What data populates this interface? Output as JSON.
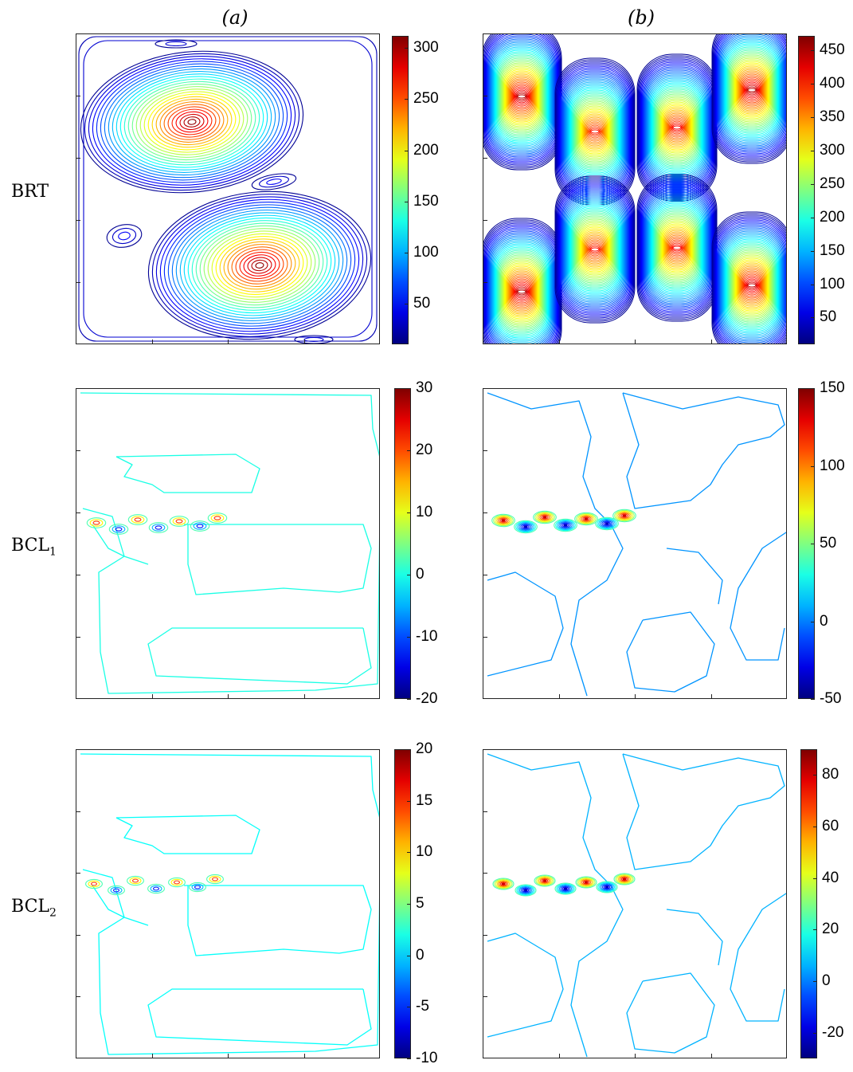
{
  "column_titles": [
    "(a)",
    "(b)"
  ],
  "row_labels": [
    {
      "main": "BRT",
      "sub": ""
    },
    {
      "main": "BCL",
      "sub": "1"
    },
    {
      "main": "BCL",
      "sub": "2"
    }
  ],
  "chart_data": [
    {
      "type": "heatmap",
      "title": "",
      "xlabel": "",
      "ylabel": "",
      "colorbar": {
        "range": [
          10,
          312
        ],
        "ticks": [
          50,
          100,
          150,
          200,
          250,
          300
        ],
        "colormap": "jet"
      },
      "contour": "two-gyre streamfunction (barotropic)"
    },
    {
      "type": "heatmap",
      "title": "",
      "xlabel": "",
      "ylabel": "",
      "colorbar": {
        "range": [
          10,
          472
        ],
        "ticks": [
          50,
          100,
          150,
          200,
          250,
          300,
          350,
          400,
          450
        ],
        "colormap": "jet"
      },
      "contour": "eight-cell streamfunction (barotropic)"
    },
    {
      "type": "heatmap",
      "title": "",
      "xlabel": "",
      "ylabel": "",
      "colorbar": {
        "range": [
          -20,
          30
        ],
        "ticks": [
          -20,
          -10,
          0,
          10,
          20,
          30
        ],
        "colormap": "jet"
      },
      "contour": "baroclinic mode 1"
    },
    {
      "type": "heatmap",
      "title": "",
      "xlabel": "",
      "ylabel": "",
      "colorbar": {
        "range": [
          -50,
          150
        ],
        "ticks": [
          -50,
          0,
          50,
          100,
          150
        ],
        "colormap": "jet"
      },
      "contour": "baroclinic mode 1"
    },
    {
      "type": "heatmap",
      "title": "",
      "xlabel": "",
      "ylabel": "",
      "colorbar": {
        "range": [
          -10,
          20
        ],
        "ticks": [
          -10,
          -5,
          0,
          5,
          10,
          15,
          20
        ],
        "colormap": "jet"
      },
      "contour": "baroclinic mode 2"
    },
    {
      "type": "heatmap",
      "title": "",
      "xlabel": "",
      "ylabel": "",
      "colorbar": {
        "range": [
          -30,
          90
        ],
        "ticks": [
          -20,
          0,
          20,
          40,
          60,
          80
        ],
        "colormap": "jet"
      },
      "contour": "baroclinic mode 2"
    }
  ]
}
